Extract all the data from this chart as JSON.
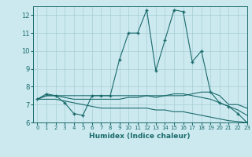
{
  "xlabel": "Humidex (Indice chaleur)",
  "xlim": [
    -0.5,
    23
  ],
  "ylim": [
    6,
    12.5
  ],
  "yticks": [
    6,
    7,
    8,
    9,
    10,
    11,
    12
  ],
  "xticks": [
    0,
    1,
    2,
    3,
    4,
    5,
    6,
    7,
    8,
    9,
    10,
    11,
    12,
    13,
    14,
    15,
    16,
    17,
    18,
    19,
    20,
    21,
    22,
    23
  ],
  "bg_color": "#cce9f0",
  "line_color": "#1a6b6b",
  "grid_color": "#a8cdd6",
  "lines": [
    {
      "x": [
        0,
        1,
        2,
        3,
        4,
        5,
        6,
        7,
        8,
        9,
        10,
        11,
        12,
        13,
        14,
        15,
        16,
        17,
        18,
        19,
        20,
        21,
        22,
        23
      ],
      "y": [
        7.3,
        7.6,
        7.5,
        7.1,
        6.5,
        6.4,
        7.5,
        7.5,
        7.5,
        9.5,
        11.0,
        11.0,
        12.3,
        8.9,
        10.6,
        12.3,
        12.2,
        9.4,
        10.0,
        7.7,
        7.1,
        6.9,
        6.5,
        6.0
      ],
      "marker": "+"
    },
    {
      "x": [
        0,
        1,
        2,
        3,
        4,
        5,
        6,
        7,
        8,
        9,
        10,
        11,
        12,
        13,
        14,
        15,
        16,
        17,
        18,
        19,
        20,
        21,
        22,
        23
      ],
      "y": [
        7.3,
        7.5,
        7.5,
        7.5,
        7.5,
        7.5,
        7.5,
        7.5,
        7.5,
        7.5,
        7.5,
        7.5,
        7.5,
        7.5,
        7.5,
        7.5,
        7.5,
        7.6,
        7.7,
        7.7,
        7.5,
        7.0,
        7.0,
        6.8
      ],
      "marker": null
    },
    {
      "x": [
        0,
        1,
        2,
        3,
        4,
        5,
        6,
        7,
        8,
        9,
        10,
        11,
        12,
        13,
        14,
        15,
        16,
        17,
        18,
        19,
        20,
        21,
        22,
        23
      ],
      "y": [
        7.3,
        7.5,
        7.5,
        7.4,
        7.3,
        7.3,
        7.3,
        7.3,
        7.3,
        7.3,
        7.4,
        7.4,
        7.5,
        7.4,
        7.5,
        7.6,
        7.6,
        7.5,
        7.4,
        7.3,
        7.1,
        6.9,
        6.7,
        6.4
      ],
      "marker": null
    },
    {
      "x": [
        0,
        1,
        2,
        3,
        4,
        5,
        6,
        7,
        8,
        9,
        10,
        11,
        12,
        13,
        14,
        15,
        16,
        17,
        18,
        19,
        20,
        21,
        22,
        23
      ],
      "y": [
        7.3,
        7.3,
        7.3,
        7.2,
        7.1,
        7.0,
        6.9,
        6.8,
        6.8,
        6.8,
        6.8,
        6.8,
        6.8,
        6.7,
        6.7,
        6.6,
        6.6,
        6.5,
        6.4,
        6.3,
        6.2,
        6.1,
        6.05,
        6.0
      ],
      "marker": null
    }
  ]
}
